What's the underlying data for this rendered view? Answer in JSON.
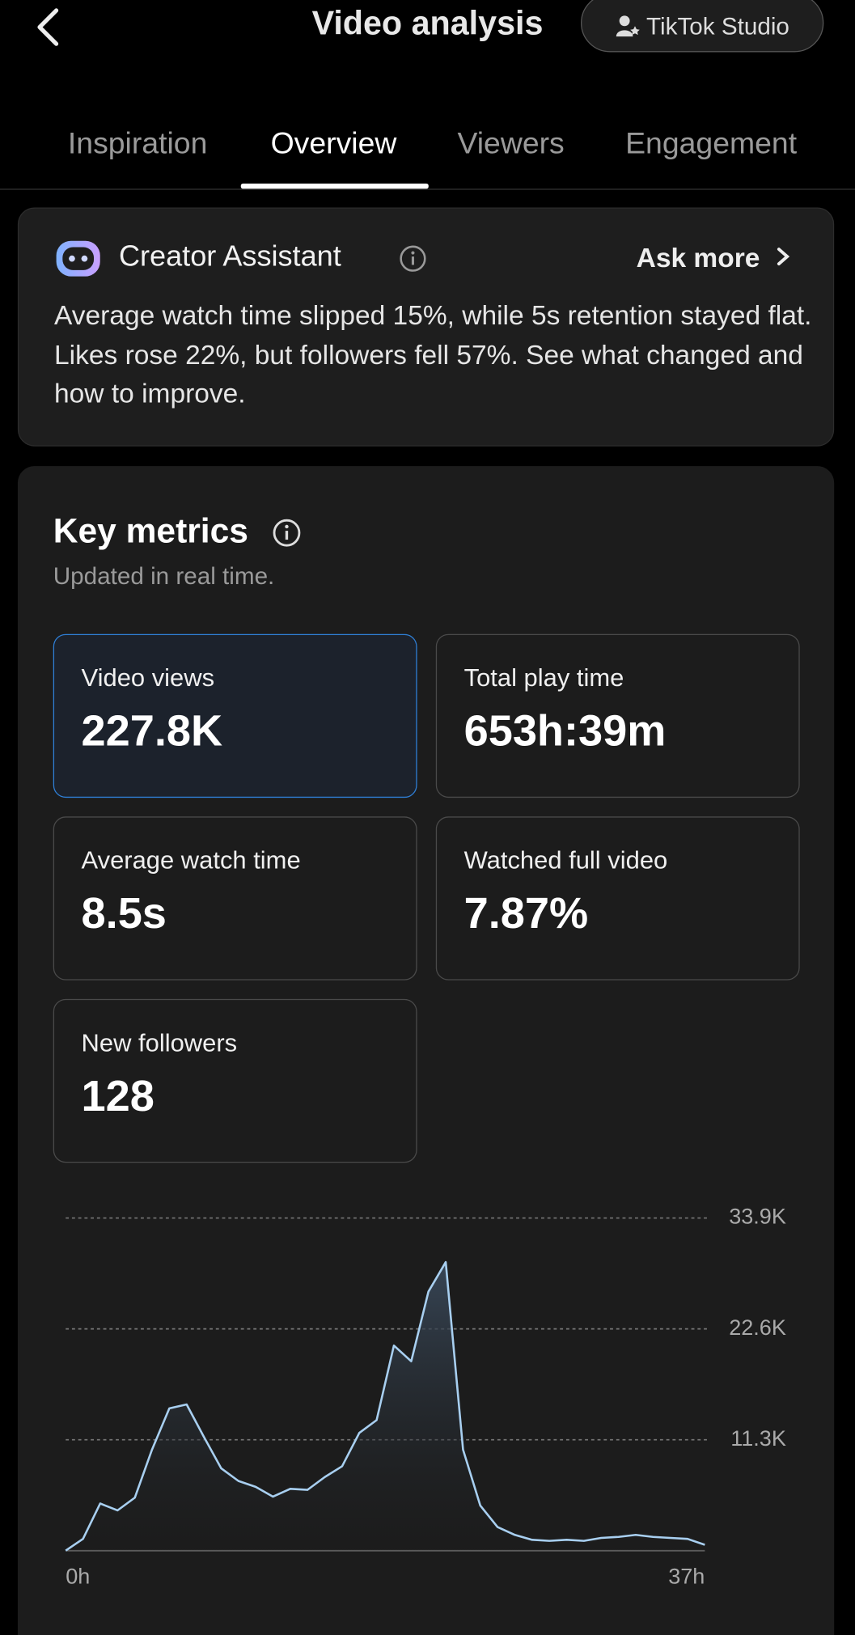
{
  "header": {
    "title": "Video analysis",
    "button": "TikTok Studio"
  },
  "tabs": [
    "Inspiration",
    "Overview",
    "Viewers",
    "Engagement"
  ],
  "assistant": {
    "title": "Creator Assistant",
    "action": "Ask more",
    "text": "Average watch time slipped 15%, while 5s retention stayed flat. Likes rose 22%, but followers fell 57%. See what changed and how to improve."
  },
  "metrics": {
    "title": "Key metrics",
    "subtitle": "Updated in real time.",
    "cards": [
      {
        "label": "Video views",
        "value": "227.8K"
      },
      {
        "label": "Total play time",
        "value": "653h:39m"
      },
      {
        "label": "Average watch time",
        "value": "8.5s"
      },
      {
        "label": "Watched full video",
        "value": "7.87%"
      },
      {
        "label": "New followers",
        "value": "128"
      }
    ]
  },
  "chart_data": {
    "type": "line",
    "color": "#a8cff0",
    "x": [
      0,
      1,
      2,
      3,
      4,
      5,
      6,
      7,
      8,
      9,
      10,
      11,
      12,
      13,
      14,
      15,
      16,
      17,
      18,
      19,
      20,
      21,
      22,
      23,
      24,
      25,
      26,
      27,
      28,
      29,
      30,
      31,
      32,
      33,
      34,
      35,
      36,
      37
    ],
    "values": [
      0,
      1200,
      4800,
      4100,
      5400,
      10300,
      14500,
      14900,
      11600,
      8400,
      7100,
      6500,
      5500,
      6300,
      6200,
      7500,
      8600,
      12000,
      13300,
      20900,
      19300,
      26400,
      29400,
      10300,
      4600,
      2400,
      1600,
      1100,
      1000,
      1100,
      1000,
      1300,
      1400,
      1600,
      1400,
      1300,
      1200,
      600
    ],
    "xlim": [
      0,
      37
    ],
    "xticks": [
      {
        "value": 0,
        "label": "0h"
      },
      {
        "value": 37,
        "label": "37h"
      }
    ],
    "ylim": [
      0,
      33900
    ],
    "yticks": [
      {
        "value": 11300,
        "label": "11.3K"
      },
      {
        "value": 22600,
        "label": "22.6K"
      },
      {
        "value": 33900,
        "label": "33.9K"
      }
    ],
    "grid": true
  }
}
